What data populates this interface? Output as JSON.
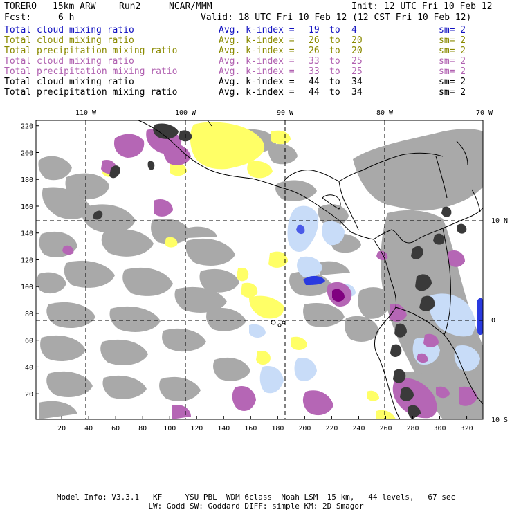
{
  "header": {
    "model": "TORERO",
    "resolution": "15km ARW",
    "run": "Run2",
    "org": "NCAR/MMM",
    "init": "Init: 12 UTC Fri 10 Feb 12",
    "fcst_label": "Fcst:",
    "fcst_value": "6 h",
    "valid": "Valid: 18 UTC Fri 10 Feb 12 (12 CST Fri 10 Feb 12)"
  },
  "legend": [
    {
      "name": "Total cloud mixing ratio",
      "avg": "Avg. k-index =",
      "hi": "19",
      "to": "to",
      "lo": "4",
      "sm": "sm= 2",
      "color": "#1010c0"
    },
    {
      "name": "Total cloud mixing ratio",
      "avg": "Avg. k-index =",
      "hi": "26",
      "to": "to",
      "lo": "20",
      "sm": "sm= 2",
      "color": "#8a8a00"
    },
    {
      "name": "Total precipitation mixing ratio",
      "avg": "Avg. k-index =",
      "hi": "26",
      "to": "to",
      "lo": "20",
      "sm": "sm= 2",
      "color": "#8a8a00"
    },
    {
      "name": "Total cloud mixing ratio",
      "avg": "Avg. k-index =",
      "hi": "33",
      "to": "to",
      "lo": "25",
      "sm": "sm= 2",
      "color": "#b060b0"
    },
    {
      "name": "Total precipitation mixing ratio",
      "avg": "Avg. k-index =",
      "hi": "33",
      "to": "to",
      "lo": "25",
      "sm": "sm= 2",
      "color": "#b060b0"
    },
    {
      "name": "Total cloud mixing ratio",
      "avg": "Avg. k-index =",
      "hi": "44",
      "to": "to",
      "lo": "34",
      "sm": "sm= 2",
      "color": "#000000"
    },
    {
      "name": "Total precipitation mixing ratio",
      "avg": "Avg. k-index =",
      "hi": "44",
      "to": "to",
      "lo": "34",
      "sm": "sm= 2",
      "color": "#000000"
    }
  ],
  "map": {
    "x_ticks": [
      "20",
      "40",
      "60",
      "80",
      "100",
      "120",
      "140",
      "160",
      "180",
      "200",
      "220",
      "240",
      "260",
      "280",
      "300",
      "320"
    ],
    "y_ticks": [
      "20",
      "40",
      "60",
      "80",
      "100",
      "120",
      "140",
      "160",
      "180",
      "200",
      "220"
    ],
    "lon_labels": [
      "110 W",
      "100 W",
      "90 W",
      "80 W",
      "70 W"
    ],
    "lat_labels": [
      "10 N",
      "0",
      "10 S"
    ],
    "colors": {
      "gray": "#a9a9a9",
      "dark": "#3a3a3a",
      "purple": "#b566b5",
      "yellow": "#ffff66",
      "lightblue": "#c8dcf8",
      "blue": "#2a3ae0",
      "deep_purple": "#800080"
    }
  },
  "footer": {
    "line1": "Model Info: V3.3.1   KF     YSU PBL  WDM 6class  Noah LSM  15 km,   44 levels,   67 sec",
    "line2": "LW: Godd SW: Goddard DIFF: simple KM: 2D Smagor"
  }
}
